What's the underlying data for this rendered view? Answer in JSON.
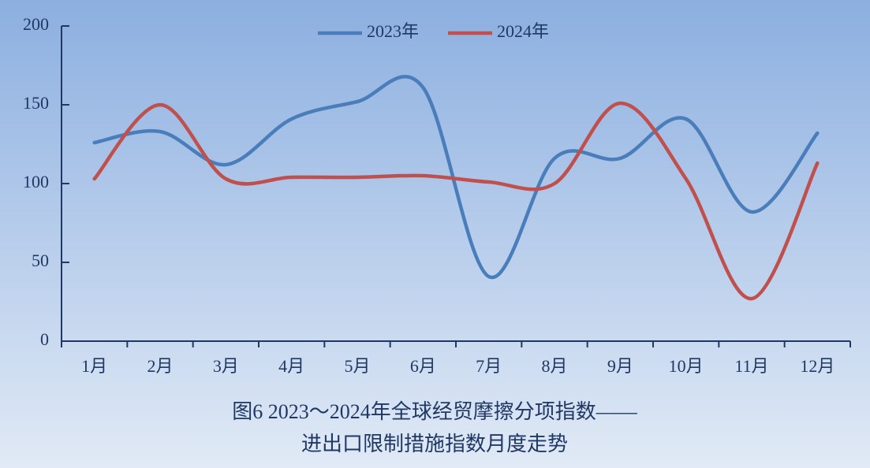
{
  "chart_data": {
    "type": "line",
    "title": [
      "图6  2023～2024年全球经贸摩擦分项指数——",
      "进出口限制措施指数月度走势"
    ],
    "categories": [
      "1月",
      "2月",
      "3月",
      "4月",
      "5月",
      "6月",
      "7月",
      "8月",
      "9月",
      "10月",
      "11月",
      "12月"
    ],
    "series": [
      {
        "name": "2023年",
        "color": "#4a7ebb",
        "values": [
          126,
          133,
          112,
          141,
          152,
          161,
          41,
          116,
          116,
          141,
          82,
          132
        ]
      },
      {
        "name": "2024年",
        "color": "#c0504d",
        "values": [
          103,
          150,
          103,
          104,
          104,
          105,
          101,
          100,
          151,
          103,
          27,
          113
        ]
      }
    ],
    "ylim": [
      0,
      200
    ],
    "yticks": [
      0,
      50,
      100,
      150,
      200
    ],
    "smooth": true,
    "legend": "top"
  }
}
